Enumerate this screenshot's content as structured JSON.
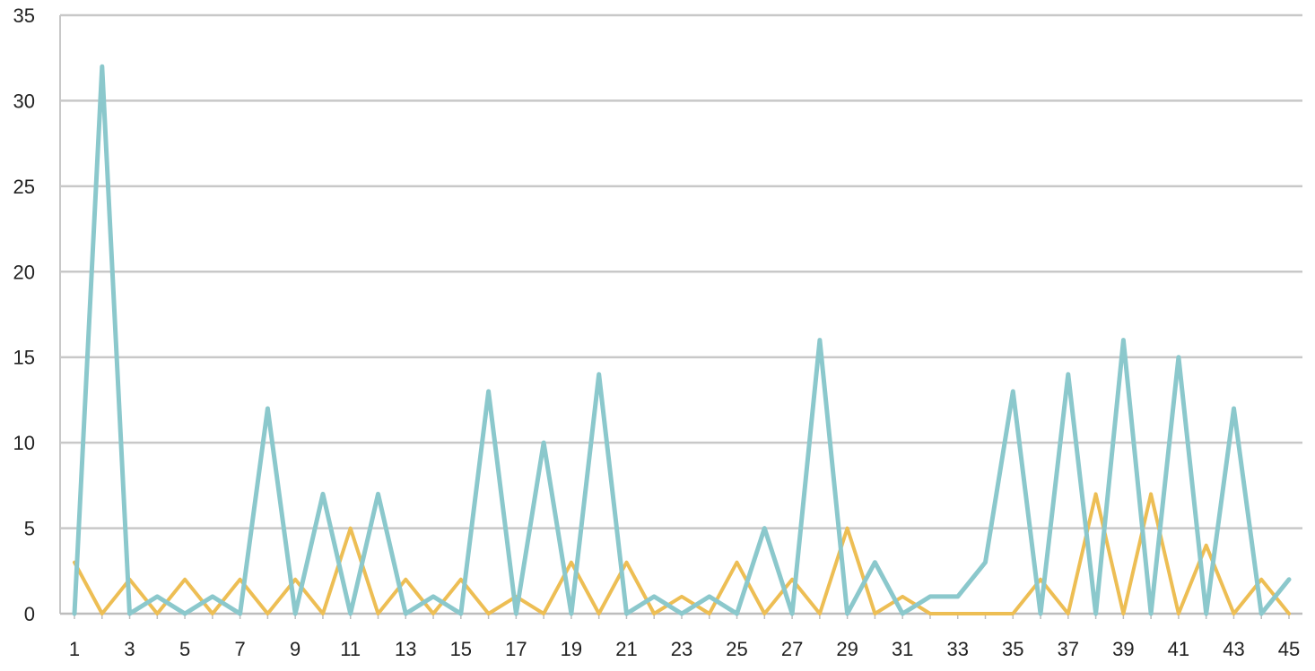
{
  "chart_data": {
    "type": "line",
    "title": "",
    "xlabel": "",
    "ylabel": "",
    "x": [
      1,
      2,
      3,
      4,
      5,
      6,
      7,
      8,
      9,
      10,
      11,
      12,
      13,
      14,
      15,
      16,
      17,
      18,
      19,
      20,
      21,
      22,
      23,
      24,
      25,
      26,
      27,
      28,
      29,
      30,
      31,
      32,
      33,
      34,
      35,
      36,
      37,
      38,
      39,
      40,
      41,
      42,
      43,
      44,
      45
    ],
    "x_tick_labels": [
      "1",
      "3",
      "5",
      "7",
      "9",
      "11",
      "13",
      "15",
      "17",
      "19",
      "21",
      "23",
      "25",
      "27",
      "29",
      "31",
      "33",
      "35",
      "37",
      "39",
      "41",
      "43",
      "45"
    ],
    "y_tick_labels": [
      "0",
      "5",
      "10",
      "15",
      "20",
      "25",
      "30",
      "35"
    ],
    "ylim": [
      0,
      35
    ],
    "yticks": [
      0,
      5,
      10,
      15,
      20,
      25,
      30,
      35
    ],
    "grid": true,
    "legend": "none",
    "series": [
      {
        "color": "#EDBE54",
        "values": [
          3,
          0,
          2,
          0,
          2,
          0,
          2,
          0,
          2,
          0,
          5,
          0,
          2,
          0,
          2,
          0,
          1,
          0,
          3,
          0,
          3,
          0,
          1,
          0,
          3,
          0,
          2,
          0,
          5,
          0,
          1,
          0,
          0,
          0,
          0,
          2,
          0,
          7,
          0,
          7,
          0,
          4,
          0,
          2,
          0
        ]
      },
      {
        "color": "#8BC8CC",
        "values": [
          0,
          32,
          0,
          1,
          0,
          1,
          0,
          12,
          0,
          7,
          0,
          7,
          0,
          1,
          0,
          13,
          0,
          10,
          0,
          14,
          0,
          1,
          0,
          1,
          0,
          5,
          0,
          16,
          0,
          3,
          0,
          1,
          1,
          3,
          13,
          0,
          14,
          0,
          16,
          0,
          15,
          0,
          12,
          0,
          2
        ]
      }
    ]
  }
}
